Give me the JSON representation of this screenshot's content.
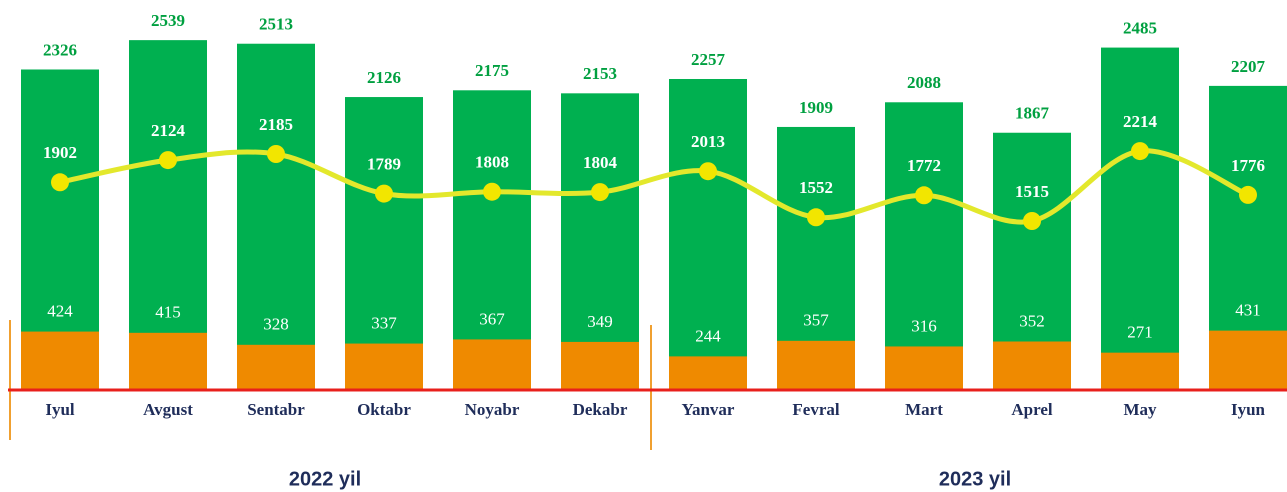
{
  "chart_data": {
    "type": "bar",
    "categories": [
      "Iyul",
      "Avgust",
      "Sentabr",
      "Oktabr",
      "Noyabr",
      "Dekabr",
      "Yanvar",
      "Fevral",
      "Mart",
      "Aprel",
      "May",
      "Iyun"
    ],
    "series": [
      {
        "color": "#00b050",
        "values": [
          2326,
          2539,
          2513,
          2126,
          2175,
          2153,
          2257,
          1909,
          2088,
          1867,
          2485,
          2207
        ]
      },
      {
        "color": "#ef8a00",
        "values": [
          424,
          415,
          328,
          337,
          367,
          349,
          244,
          357,
          316,
          352,
          271,
          431
        ]
      },
      {
        "type": "line",
        "axis": "y2",
        "color": "#e3e82c",
        "values": [
          1902,
          2124,
          2185,
          1789,
          1808,
          1804,
          2013,
          1552,
          1772,
          1515,
          2214,
          1776
        ]
      }
    ],
    "ylim": [
      0,
      2540
    ],
    "y2lim": [
      -175,
      3325
    ],
    "groups": [
      "2022 yil",
      "2023 yil"
    ]
  }
}
